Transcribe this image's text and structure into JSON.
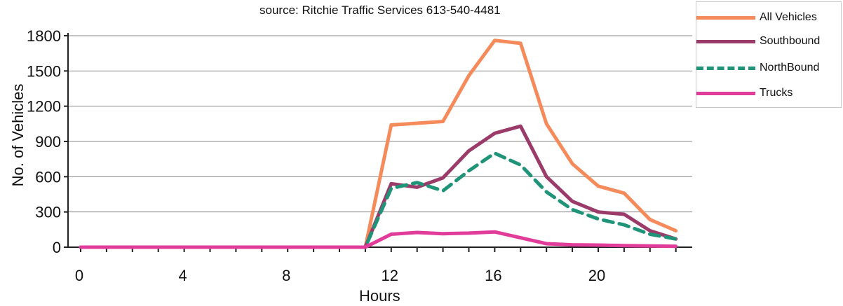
{
  "chart_data": {
    "type": "line",
    "subtitle": "source: Ritchie Traffic Services 613-540-4481",
    "xlabel": "Hours",
    "ylabel": "No. of Vehicles",
    "xlim": [
      0,
      23
    ],
    "ylim": [
      0,
      1800
    ],
    "x_ticks": [
      0,
      4,
      8,
      12,
      16,
      20
    ],
    "y_ticks": [
      0,
      300,
      600,
      900,
      1200,
      1500,
      1800
    ],
    "y_tick_labels": [
      "0",
      "300",
      "600",
      "900",
      "1200",
      "1500",
      "1800"
    ],
    "grid": "horizontal",
    "legend_position": "top-right",
    "x": [
      0,
      1,
      2,
      3,
      4,
      5,
      6,
      7,
      8,
      9,
      10,
      11,
      12,
      13,
      14,
      15,
      16,
      17,
      18,
      19,
      20,
      21,
      22,
      23
    ],
    "series": [
      {
        "name": "All Vehicles",
        "color": "#f58a5a",
        "dash": "solid",
        "values": [
          0,
          0,
          0,
          0,
          0,
          0,
          0,
          0,
          0,
          0,
          0,
          0,
          1040,
          1055,
          1070,
          1460,
          1760,
          1735,
          1050,
          710,
          520,
          460,
          235,
          140
        ]
      },
      {
        "name": "Southbound",
        "color": "#9a3b6a",
        "dash": "solid",
        "values": [
          0,
          0,
          0,
          0,
          0,
          0,
          0,
          0,
          0,
          0,
          0,
          0,
          540,
          510,
          590,
          820,
          970,
          1030,
          600,
          390,
          300,
          280,
          140,
          70
        ]
      },
      {
        "name": "NorthBound",
        "color": "#1f9478",
        "dash": "dashed",
        "values": [
          0,
          0,
          0,
          0,
          0,
          0,
          0,
          0,
          0,
          0,
          0,
          0,
          500,
          550,
          480,
          650,
          800,
          700,
          470,
          320,
          240,
          190,
          110,
          70
        ]
      },
      {
        "name": "Trucks",
        "color": "#e23c9b",
        "dash": "solid",
        "values": [
          0,
          0,
          0,
          0,
          0,
          0,
          0,
          0,
          0,
          0,
          0,
          0,
          110,
          125,
          115,
          120,
          130,
          80,
          30,
          20,
          18,
          14,
          10,
          8
        ]
      }
    ]
  }
}
